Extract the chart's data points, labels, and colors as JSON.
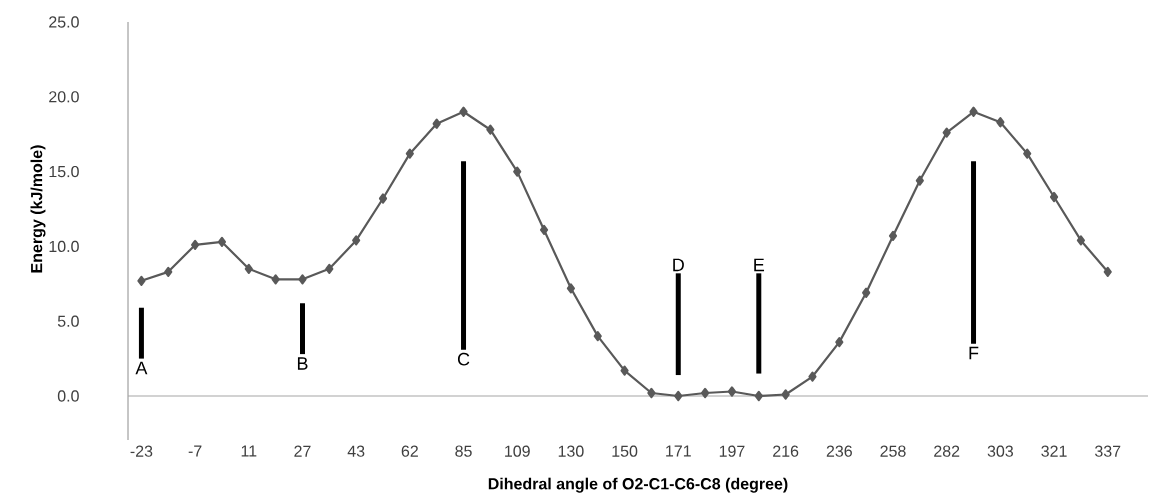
{
  "chart_data": {
    "type": "line",
    "xlabel": "Dihedral angle of O2-C1-C6-C8 (degree)",
    "ylabel": "Energy (kJ/mole)",
    "categories": [
      "-23",
      null,
      "-7",
      null,
      "11",
      null,
      "27",
      null,
      "43",
      null,
      "62",
      null,
      "85",
      null,
      "109",
      null,
      "130",
      null,
      "150",
      null,
      "171",
      null,
      "197",
      null,
      "216",
      null,
      "236",
      null,
      "258",
      null,
      "282",
      null,
      "303",
      null,
      "321",
      null,
      "337"
    ],
    "series": [
      {
        "color": "#595959",
        "values": [
          7.7,
          8.3,
          10.1,
          10.3,
          8.5,
          7.8,
          7.8,
          8.5,
          10.4,
          13.2,
          16.2,
          18.2,
          19.0,
          17.8,
          15.0,
          11.1,
          7.2,
          4.0,
          1.7,
          0.2,
          0.0,
          0.2,
          0.3,
          0.0,
          0.1,
          1.3,
          3.6,
          6.9,
          10.7,
          14.4,
          17.6,
          19.0,
          18.3,
          16.2,
          13.3,
          10.4,
          8.3
        ]
      },
      {
        "type": "bar",
        "color": "#000000",
        "base": [
          2.5,
          null,
          null,
          null,
          null,
          null,
          2.8,
          null,
          null,
          null,
          null,
          null,
          3.1,
          null,
          null,
          null,
          null,
          null,
          null,
          null,
          1.4,
          null,
          null,
          1.5,
          null,
          null,
          null,
          null,
          null,
          null,
          null,
          3.5,
          null,
          null,
          null,
          null,
          null
        ],
        "values": [
          3.4,
          null,
          null,
          null,
          null,
          null,
          3.4,
          null,
          null,
          null,
          null,
          null,
          12.6,
          null,
          null,
          null,
          null,
          null,
          null,
          null,
          6.8,
          null,
          null,
          6.7,
          null,
          null,
          null,
          null,
          null,
          null,
          null,
          12.2,
          null,
          null,
          null,
          null,
          null
        ],
        "value_labels": [
          "A",
          null,
          null,
          null,
          null,
          null,
          "B",
          null,
          null,
          null,
          null,
          null,
          "C",
          null,
          null,
          null,
          null,
          null,
          null,
          null,
          "D",
          null,
          null,
          "E",
          null,
          null,
          null,
          null,
          null,
          null,
          null,
          "F",
          null,
          null,
          null,
          null,
          null
        ]
      }
    ],
    "marker": "diamond",
    "ylim": [
      0,
      25
    ],
    "yticks": [
      {
        "value": 0,
        "label": "0.0"
      },
      {
        "value": 5,
        "label": "5.0"
      },
      {
        "value": 10,
        "label": "10.0"
      },
      {
        "value": 15,
        "label": "15.0"
      },
      {
        "value": 20,
        "label": "20.0"
      },
      {
        "value": 25,
        "label": "25.0"
      }
    ],
    "ref_lines": [
      {
        "axis": "y",
        "value": 0,
        "color": "#a6a6a6"
      }
    ]
  }
}
